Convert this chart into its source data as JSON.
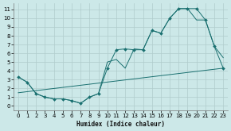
{
  "background_color": "#cce8e8",
  "grid_color": "#b0cccc",
  "line_color": "#1a7070",
  "marker_color": "#1a7070",
  "xlabel": "Humidex (Indice chaleur)",
  "xlim": [
    -0.5,
    23.5
  ],
  "ylim": [
    -0.5,
    11.7
  ],
  "xticks": [
    0,
    1,
    2,
    3,
    4,
    5,
    6,
    7,
    8,
    9,
    10,
    11,
    12,
    13,
    14,
    15,
    16,
    17,
    18,
    19,
    20,
    21,
    22,
    23
  ],
  "yticks": [
    0,
    1,
    2,
    3,
    4,
    5,
    6,
    7,
    8,
    9,
    10,
    11
  ],
  "curve1_x": [
    0,
    1,
    2,
    3,
    4,
    5,
    6,
    7,
    8,
    9,
    10,
    11,
    12,
    13,
    14,
    15,
    16,
    17,
    18,
    19,
    20,
    21,
    22,
    23
  ],
  "curve1_y": [
    3.3,
    2.7,
    1.4,
    1.0,
    0.8,
    0.8,
    0.6,
    0.3,
    1.0,
    1.4,
    4.3,
    6.4,
    6.5,
    6.4,
    6.4,
    8.6,
    8.3,
    10.0,
    11.1,
    11.1,
    11.1,
    9.8,
    6.8,
    4.3
  ],
  "curve2_x": [
    0,
    1,
    2,
    3,
    4,
    5,
    6,
    7,
    8,
    9,
    10,
    11,
    12,
    13,
    14,
    15,
    16,
    17,
    18,
    19,
    20,
    21,
    22,
    23
  ],
  "curve2_y": [
    3.3,
    2.7,
    1.4,
    1.0,
    0.8,
    0.8,
    0.6,
    0.3,
    1.0,
    1.4,
    5.0,
    5.3,
    4.3,
    6.5,
    6.4,
    8.6,
    8.3,
    10.0,
    11.1,
    11.1,
    9.8,
    9.8,
    6.8,
    5.5
  ],
  "curve3_x": [
    0,
    23
  ],
  "curve3_y": [
    1.5,
    4.3
  ]
}
